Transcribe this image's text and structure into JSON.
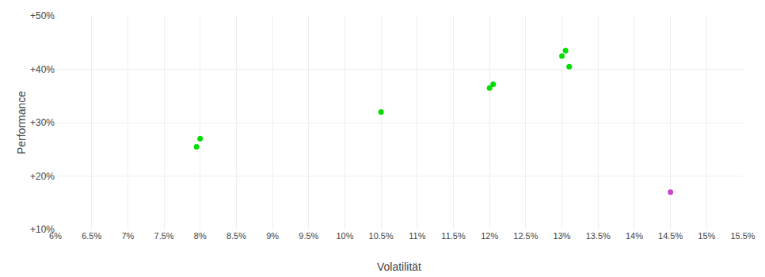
{
  "chart_data": {
    "type": "scatter",
    "xlabel": "Volatilität",
    "ylabel": "Performance",
    "series": [
      {
        "color": "#00dd00",
        "x": [
          8.0,
          7.95,
          10.5,
          12.0,
          12.05,
          13.0,
          13.05,
          13.1
        ],
        "values": [
          27.0,
          25.5,
          32.0,
          36.5,
          37.2,
          42.5,
          43.5,
          40.5
        ]
      },
      {
        "color": "#cc44cc",
        "x": [
          14.5
        ],
        "values": [
          17.0
        ]
      }
    ],
    "xlim": [
      6.0,
      15.5
    ],
    "ylim": [
      10.0,
      50.0
    ],
    "xticks": [
      {
        "value": 6.0,
        "label": "6%"
      },
      {
        "value": 6.5,
        "label": "6.5%"
      },
      {
        "value": 7.0,
        "label": "7%"
      },
      {
        "value": 7.5,
        "label": "7.5%"
      },
      {
        "value": 8.0,
        "label": "8%"
      },
      {
        "value": 8.5,
        "label": "8.5%"
      },
      {
        "value": 9.0,
        "label": "9%"
      },
      {
        "value": 9.5,
        "label": "9.5%"
      },
      {
        "value": 10.0,
        "label": "10%"
      },
      {
        "value": 10.5,
        "label": "10.5%"
      },
      {
        "value": 11.0,
        "label": "11%"
      },
      {
        "value": 11.5,
        "label": "11.5%"
      },
      {
        "value": 12.0,
        "label": "12%"
      },
      {
        "value": 12.5,
        "label": "12.5%"
      },
      {
        "value": 13.0,
        "label": "13%"
      },
      {
        "value": 13.5,
        "label": "13.5%"
      },
      {
        "value": 14.0,
        "label": "14%"
      },
      {
        "value": 14.5,
        "label": "14.5%"
      },
      {
        "value": 15.0,
        "label": "15%"
      },
      {
        "value": 15.5,
        "label": "15.5%"
      }
    ],
    "yticks": [
      {
        "value": 10,
        "label": "+10%"
      },
      {
        "value": 20,
        "label": "+20%"
      },
      {
        "value": 30,
        "label": "+30%"
      },
      {
        "value": 40,
        "label": "+40%"
      },
      {
        "value": 50,
        "label": "+50%"
      }
    ],
    "grid": true
  }
}
